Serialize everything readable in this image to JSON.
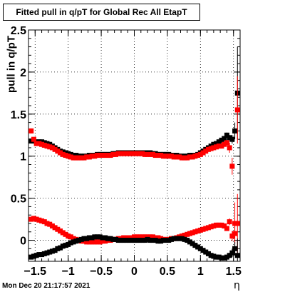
{
  "chart_data": {
    "type": "scatter",
    "title": "Fitted pull in q/pT for Global Rec All EtapT",
    "xlabel": "η",
    "ylabel": "pull in q/pT",
    "xlim": [
      -1.6,
      1.6
    ],
    "ylim": [
      -0.25,
      2.5
    ],
    "x_ticks": [
      -1.5,
      -1,
      -0.5,
      0,
      0.5,
      1,
      1.5
    ],
    "x_tick_labels": [
      "−1.5",
      "−1",
      "−0.5",
      "0",
      "0.5",
      "1",
      "1.5"
    ],
    "y_ticks": [
      0,
      0.5,
      1,
      1.5,
      2,
      2.5
    ],
    "y_tick_labels": [
      "0",
      "0.5",
      "1",
      "1.5",
      "2",
      "2.5"
    ],
    "grid": true,
    "x": [
      -1.56,
      -1.52,
      -1.48,
      -1.44,
      -1.4,
      -1.36,
      -1.32,
      -1.28,
      -1.24,
      -1.2,
      -1.16,
      -1.12,
      -1.08,
      -1.04,
      -1.0,
      -0.96,
      -0.92,
      -0.88,
      -0.84,
      -0.8,
      -0.76,
      -0.72,
      -0.68,
      -0.64,
      -0.6,
      -0.56,
      -0.52,
      -0.48,
      -0.44,
      -0.4,
      -0.36,
      -0.32,
      -0.28,
      -0.24,
      -0.2,
      -0.16,
      -0.12,
      -0.08,
      -0.04,
      0.0,
      0.04,
      0.08,
      0.12,
      0.16,
      0.2,
      0.24,
      0.28,
      0.32,
      0.36,
      0.4,
      0.44,
      0.48,
      0.52,
      0.56,
      0.6,
      0.64,
      0.68,
      0.72,
      0.76,
      0.8,
      0.84,
      0.88,
      0.92,
      0.96,
      1.0,
      1.04,
      1.08,
      1.12,
      1.16,
      1.2,
      1.24,
      1.28,
      1.32,
      1.36,
      1.4,
      1.44,
      1.48,
      1.52,
      1.56
    ],
    "series": [
      {
        "color": "#000000",
        "values": [
          1.18,
          1.18,
          1.17,
          1.17,
          1.17,
          1.16,
          1.15,
          1.14,
          1.12,
          1.1,
          1.08,
          1.06,
          1.05,
          1.04,
          1.03,
          1.02,
          1.01,
          1.01,
          1.0,
          1.0,
          1.0,
          1.0,
          1.01,
          1.01,
          1.01,
          1.02,
          1.02,
          1.02,
          1.02,
          1.02,
          1.02,
          1.03,
          1.03,
          1.04,
          1.04,
          1.04,
          1.04,
          1.04,
          1.04,
          1.04,
          1.04,
          1.04,
          1.04,
          1.04,
          1.04,
          1.04,
          1.03,
          1.03,
          1.02,
          1.02,
          1.02,
          1.02,
          1.02,
          1.01,
          1.01,
          1.01,
          1.0,
          1.0,
          1.0,
          1.0,
          1.01,
          1.01,
          1.01,
          1.02,
          1.04,
          1.06,
          1.08,
          1.1,
          1.12,
          1.14,
          1.15,
          1.17,
          1.19,
          1.21,
          1.25,
          1.22,
          1.2,
          1.3,
          1.75
        ],
        "errors": [
          0.01,
          0.01,
          0.01,
          0.01,
          0.01,
          0.01,
          0.01,
          0.01,
          0.01,
          0.01,
          0.01,
          0.01,
          0.01,
          0.01,
          0.01,
          0.01,
          0.01,
          0.01,
          0.01,
          0.01,
          0.01,
          0.01,
          0.01,
          0.01,
          0.01,
          0.01,
          0.01,
          0.01,
          0.01,
          0.01,
          0.01,
          0.01,
          0.01,
          0.01,
          0.01,
          0.01,
          0.01,
          0.01,
          0.01,
          0.01,
          0.01,
          0.01,
          0.01,
          0.01,
          0.01,
          0.01,
          0.01,
          0.01,
          0.01,
          0.01,
          0.01,
          0.01,
          0.01,
          0.01,
          0.01,
          0.01,
          0.01,
          0.01,
          0.01,
          0.01,
          0.01,
          0.01,
          0.01,
          0.01,
          0.01,
          0.01,
          0.01,
          0.01,
          0.01,
          0.01,
          0.01,
          0.02,
          0.02,
          0.02,
          0.03,
          0.03,
          0.05,
          0.1,
          0.55
        ]
      },
      {
        "color": "#ff0000",
        "values": [
          1.3,
          1.2,
          1.15,
          1.15,
          1.14,
          1.13,
          1.12,
          1.11,
          1.1,
          1.08,
          1.06,
          1.04,
          1.02,
          1.01,
          1.0,
          0.99,
          0.98,
          0.98,
          0.98,
          0.98,
          0.98,
          0.99,
          0.99,
          1.0,
          1.0,
          1.01,
          1.01,
          1.01,
          1.01,
          1.01,
          1.01,
          1.02,
          1.02,
          1.03,
          1.03,
          1.03,
          1.03,
          1.03,
          1.03,
          1.03,
          1.03,
          1.03,
          1.03,
          1.02,
          1.02,
          1.02,
          1.02,
          1.01,
          1.01,
          1.01,
          1.0,
          1.0,
          1.0,
          1.0,
          0.99,
          0.99,
          0.99,
          0.98,
          0.98,
          0.98,
          0.99,
          0.99,
          1.0,
          1.01,
          1.02,
          1.04,
          1.06,
          1.08,
          1.09,
          1.1,
          1.11,
          1.12,
          1.12,
          1.14,
          1.16,
          1.1,
          0.88,
          0.2,
          1.55
        ],
        "errors": [
          0.03,
          0.02,
          0.01,
          0.01,
          0.01,
          0.01,
          0.01,
          0.01,
          0.01,
          0.01,
          0.01,
          0.01,
          0.01,
          0.01,
          0.01,
          0.01,
          0.01,
          0.01,
          0.01,
          0.01,
          0.01,
          0.01,
          0.01,
          0.01,
          0.01,
          0.01,
          0.01,
          0.01,
          0.01,
          0.01,
          0.01,
          0.01,
          0.01,
          0.01,
          0.01,
          0.01,
          0.01,
          0.01,
          0.01,
          0.01,
          0.01,
          0.01,
          0.01,
          0.01,
          0.01,
          0.01,
          0.01,
          0.01,
          0.01,
          0.01,
          0.01,
          0.01,
          0.01,
          0.01,
          0.01,
          0.01,
          0.01,
          0.01,
          0.01,
          0.01,
          0.01,
          0.01,
          0.01,
          0.01,
          0.01,
          0.01,
          0.01,
          0.01,
          0.01,
          0.01,
          0.01,
          0.01,
          0.02,
          0.02,
          0.03,
          0.06,
          0.1,
          0.25,
          0.4
        ]
      },
      {
        "color": "#ff0000",
        "values": [
          0.25,
          0.26,
          0.25,
          0.24,
          0.23,
          0.22,
          0.2,
          0.19,
          0.17,
          0.15,
          0.13,
          0.11,
          0.09,
          0.07,
          0.05,
          0.04,
          0.02,
          0.01,
          0.0,
          -0.01,
          -0.01,
          -0.02,
          -0.02,
          -0.02,
          -0.02,
          -0.02,
          -0.02,
          -0.01,
          -0.01,
          0.0,
          0.0,
          0.01,
          0.01,
          0.02,
          0.02,
          0.03,
          0.03,
          0.03,
          0.03,
          0.04,
          0.04,
          0.04,
          0.04,
          0.04,
          0.04,
          0.04,
          0.04,
          0.03,
          0.03,
          0.02,
          0.01,
          0.01,
          0.01,
          0.02,
          0.02,
          0.03,
          0.04,
          0.05,
          0.06,
          0.07,
          0.08,
          0.09,
          0.1,
          0.11,
          0.12,
          0.13,
          0.14,
          0.15,
          0.16,
          0.17,
          0.18,
          0.18,
          0.18,
          0.17,
          0.14,
          0.22,
          0.05,
          0.08,
          0.2
        ],
        "errors": [
          0.02,
          0.01,
          0.01,
          0.01,
          0.01,
          0.01,
          0.01,
          0.01,
          0.01,
          0.01,
          0.01,
          0.01,
          0.01,
          0.01,
          0.01,
          0.01,
          0.01,
          0.01,
          0.01,
          0.01,
          0.01,
          0.01,
          0.01,
          0.01,
          0.01,
          0.01,
          0.01,
          0.01,
          0.01,
          0.01,
          0.01,
          0.01,
          0.01,
          0.01,
          0.01,
          0.01,
          0.01,
          0.01,
          0.01,
          0.01,
          0.01,
          0.01,
          0.01,
          0.01,
          0.01,
          0.01,
          0.01,
          0.01,
          0.01,
          0.01,
          0.01,
          0.01,
          0.01,
          0.01,
          0.01,
          0.01,
          0.01,
          0.01,
          0.01,
          0.01,
          0.01,
          0.01,
          0.01,
          0.01,
          0.01,
          0.01,
          0.01,
          0.01,
          0.01,
          0.01,
          0.01,
          0.01,
          0.01,
          0.02,
          0.02,
          0.04,
          0.06,
          0.12,
          0.35
        ]
      },
      {
        "color": "#000000",
        "values": [
          -0.2,
          -0.19,
          -0.18,
          -0.17,
          -0.17,
          -0.16,
          -0.15,
          -0.14,
          -0.13,
          -0.12,
          -0.1,
          -0.09,
          -0.07,
          -0.06,
          -0.05,
          -0.03,
          -0.02,
          -0.01,
          0.0,
          0.01,
          0.02,
          0.02,
          0.03,
          0.03,
          0.04,
          0.04,
          0.04,
          0.03,
          0.03,
          0.02,
          0.02,
          0.01,
          0.01,
          0.0,
          0.0,
          0.0,
          0.0,
          0.0,
          0.0,
          0.0,
          0.0,
          0.0,
          0.0,
          0.0,
          0.01,
          0.0,
          0.0,
          0.0,
          -0.01,
          -0.01,
          0.0,
          0.0,
          0.0,
          0.01,
          0.02,
          0.02,
          0.02,
          0.02,
          0.01,
          0.0,
          -0.02,
          -0.04,
          -0.06,
          -0.08,
          -0.1,
          -0.12,
          -0.14,
          -0.16,
          -0.18,
          -0.19,
          -0.2,
          -0.2,
          -0.21,
          -0.21,
          -0.2,
          -0.18,
          -0.15,
          -0.1,
          -0.18
        ],
        "errors": [
          0.01,
          0.01,
          0.01,
          0.01,
          0.01,
          0.01,
          0.01,
          0.01,
          0.01,
          0.01,
          0.01,
          0.01,
          0.01,
          0.01,
          0.01,
          0.01,
          0.01,
          0.01,
          0.01,
          0.01,
          0.01,
          0.01,
          0.01,
          0.01,
          0.01,
          0.01,
          0.01,
          0.01,
          0.01,
          0.01,
          0.01,
          0.01,
          0.01,
          0.01,
          0.01,
          0.01,
          0.01,
          0.01,
          0.01,
          0.01,
          0.01,
          0.01,
          0.01,
          0.01,
          0.01,
          0.01,
          0.01,
          0.01,
          0.01,
          0.01,
          0.01,
          0.01,
          0.01,
          0.01,
          0.01,
          0.01,
          0.01,
          0.01,
          0.01,
          0.01,
          0.01,
          0.01,
          0.01,
          0.01,
          0.01,
          0.01,
          0.01,
          0.01,
          0.01,
          0.01,
          0.01,
          0.01,
          0.01,
          0.01,
          0.02,
          0.03,
          0.05,
          0.08,
          0.2
        ]
      }
    ]
  },
  "footer": {
    "timestamp": "Mon Dec 20 21:17:57 2021"
  }
}
